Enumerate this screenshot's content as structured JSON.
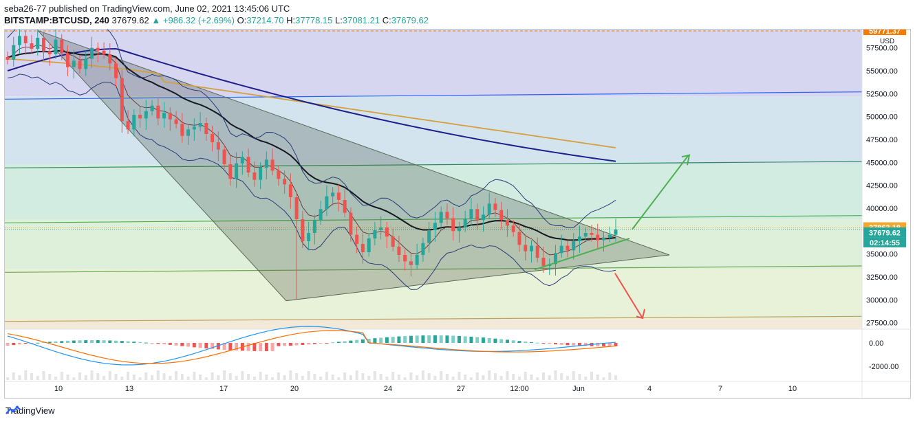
{
  "header": {
    "publisher_line": "seba26-77 published on TradingView.com, June 02, 2021 13:45:06 UTC",
    "symbol": "BITSTAMP:BTCUSD, 240",
    "last": "37679.62",
    "change_arrow": "▲",
    "change": "+986.32 (+2.69%)",
    "o_label": "O:",
    "o_value": "37214.70",
    "h_label": "H:",
    "h_value": "37778.15",
    "l_label": "L:",
    "l_value": "37081.21",
    "c_label": "C:",
    "c_value": "37679.62"
  },
  "brand": {
    "name": "TradingView",
    "icon": "tradingview-logo-icon"
  },
  "colors": {
    "up": "#26a69a",
    "down": "#ef5350",
    "ma_fast": "#131722",
    "ma_mid": "#1e1e8c",
    "ma_slow": "#d4a03c",
    "bb": "#2a3a7a",
    "triangle": "#5a6a5a"
  },
  "chart_data": [
    {
      "type": "candlestick",
      "title": "",
      "currency_label": "USD",
      "ylim": [
        26800,
        59500
      ],
      "y_ticks": [
        "57500.00",
        "55000.00",
        "52500.00",
        "50000.00",
        "47500.00",
        "45000.00",
        "42500.00",
        "40000.00",
        "35000.00",
        "32500.00",
        "30000.00",
        "27500.00"
      ],
      "x_ticks": [
        "10",
        "13",
        "17",
        "20",
        "24",
        "27",
        "12:00",
        "Jun",
        "4",
        "7",
        "10"
      ],
      "price_labels": {
        "top": "59771.37",
        "level": "37863.18",
        "last": "37679.62",
        "countdown": "02:14:55"
      },
      "horizontal_levels": [
        {
          "y_start": 51900,
          "y_end": 52700,
          "color": "#2962ff"
        },
        {
          "y_start": 44400,
          "y_end": 45100,
          "color": "#2e8b57"
        },
        {
          "y_start": 38400,
          "y_end": 39200,
          "color": "#4caf50"
        },
        {
          "y_start": 33000,
          "y_end": 33700,
          "color": "#6aa84f"
        },
        {
          "y_start": 27650,
          "y_end": 28200,
          "color": "#c0a060"
        }
      ],
      "zones": [
        {
          "from": 52200,
          "to": 59500,
          "color": "#d6d6f0"
        },
        {
          "from": 44800,
          "to": 52200,
          "color": "#d3e4ef"
        },
        {
          "from": 38800,
          "to": 44800,
          "color": "#d3ece2"
        },
        {
          "from": 33400,
          "to": 38800,
          "color": "#def0d9"
        },
        {
          "from": 27900,
          "to": 33400,
          "color": "#e8f2d8"
        },
        {
          "from": 26800,
          "to": 27900,
          "color": "#f2e9d8"
        }
      ],
      "candles_close": [
        56200,
        57800,
        58800,
        58000,
        57400,
        58600,
        57100,
        56800,
        58400,
        56900,
        55400,
        56100,
        55200,
        56300,
        57500,
        57200,
        56800,
        55800,
        54200,
        49500,
        48600,
        50200,
        49800,
        50600,
        51200,
        49800,
        50400,
        49700,
        49200,
        47900,
        48600,
        48900,
        49300,
        48100,
        47200,
        46400,
        44800,
        43200,
        44900,
        45600,
        43900,
        43100,
        44400,
        45300,
        44100,
        43200,
        42600,
        41200,
        38800,
        36400,
        37300,
        38700,
        39900,
        41300,
        41700,
        40900,
        39500,
        37100,
        36100,
        35200,
        36700,
        37600,
        37900,
        36900,
        35800,
        34900,
        34200,
        33800,
        34900,
        36200,
        37600,
        38400,
        39600,
        38900,
        37500,
        37900,
        38800,
        39900,
        38700,
        39300,
        40500,
        39800,
        38700,
        38100,
        37400,
        36000,
        35300,
        35900,
        34600,
        33700,
        33900,
        35100,
        35900,
        35400,
        36400,
        36900,
        37300,
        37100,
        36500,
        36800,
        37100,
        37679
      ],
      "macd_histogram_note": "",
      "macd_ticks": [
        "0.00",
        "-2000.00"
      ],
      "projection_up_target": 45800,
      "projection_down_target": 28000
    }
  ]
}
